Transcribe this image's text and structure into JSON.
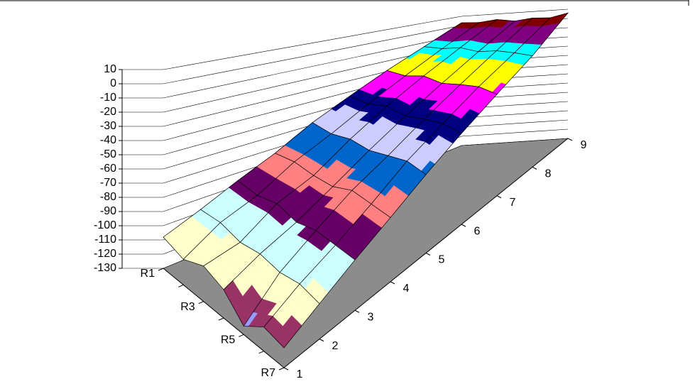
{
  "chart_data": {
    "type": "surface",
    "categories": [
      "1",
      "2",
      "3",
      "4",
      "5",
      "6",
      "7",
      "8",
      "9"
    ],
    "series": [
      {
        "name": "R1",
        "values": [
          -108,
          -98,
          -86,
          -74,
          -58,
          -44,
          -29,
          -14,
          3
        ]
      },
      {
        "name": null,
        "values": [
          -112,
          -97,
          -88,
          -73,
          -61,
          -46,
          -31,
          -15,
          2
        ]
      },
      {
        "name": "R3",
        "values": [
          -105,
          -101,
          -85,
          -76,
          -59,
          -43,
          -28,
          -13,
          4
        ]
      },
      {
        "name": null,
        "values": [
          -110,
          -99,
          -90,
          -77,
          -62,
          -47,
          -32,
          -16,
          1
        ]
      },
      {
        "name": "R5",
        "values": [
          -124,
          -102,
          -87,
          -72,
          -60,
          -45,
          -30,
          -14,
          3
        ]
      },
      {
        "name": null,
        "values": [
          -113,
          -100,
          -89,
          -75,
          -58,
          -44,
          -29,
          -15,
          2
        ]
      },
      {
        "name": "R7",
        "values": [
          -116,
          -104,
          -91,
          -78,
          -63,
          -48,
          -33,
          -17,
          6
        ]
      }
    ],
    "zlim": [
      -130,
      10
    ],
    "zticks": [
      10,
      0,
      -10,
      -20,
      -30,
      -40,
      -50,
      -60,
      -70,
      -80,
      -90,
      -100,
      -110,
      -120,
      -130
    ],
    "band_colors": [
      "#9999ff",
      "#993366",
      "#ffffcc",
      "#ccffff",
      "#660066",
      "#ff8080",
      "#0066cc",
      "#ccccff",
      "#000080",
      "#ff00ff",
      "#ffff00",
      "#00ffff",
      "#800080",
      "#800000"
    ],
    "floor_color": "#8c8c8c",
    "grid": true
  }
}
